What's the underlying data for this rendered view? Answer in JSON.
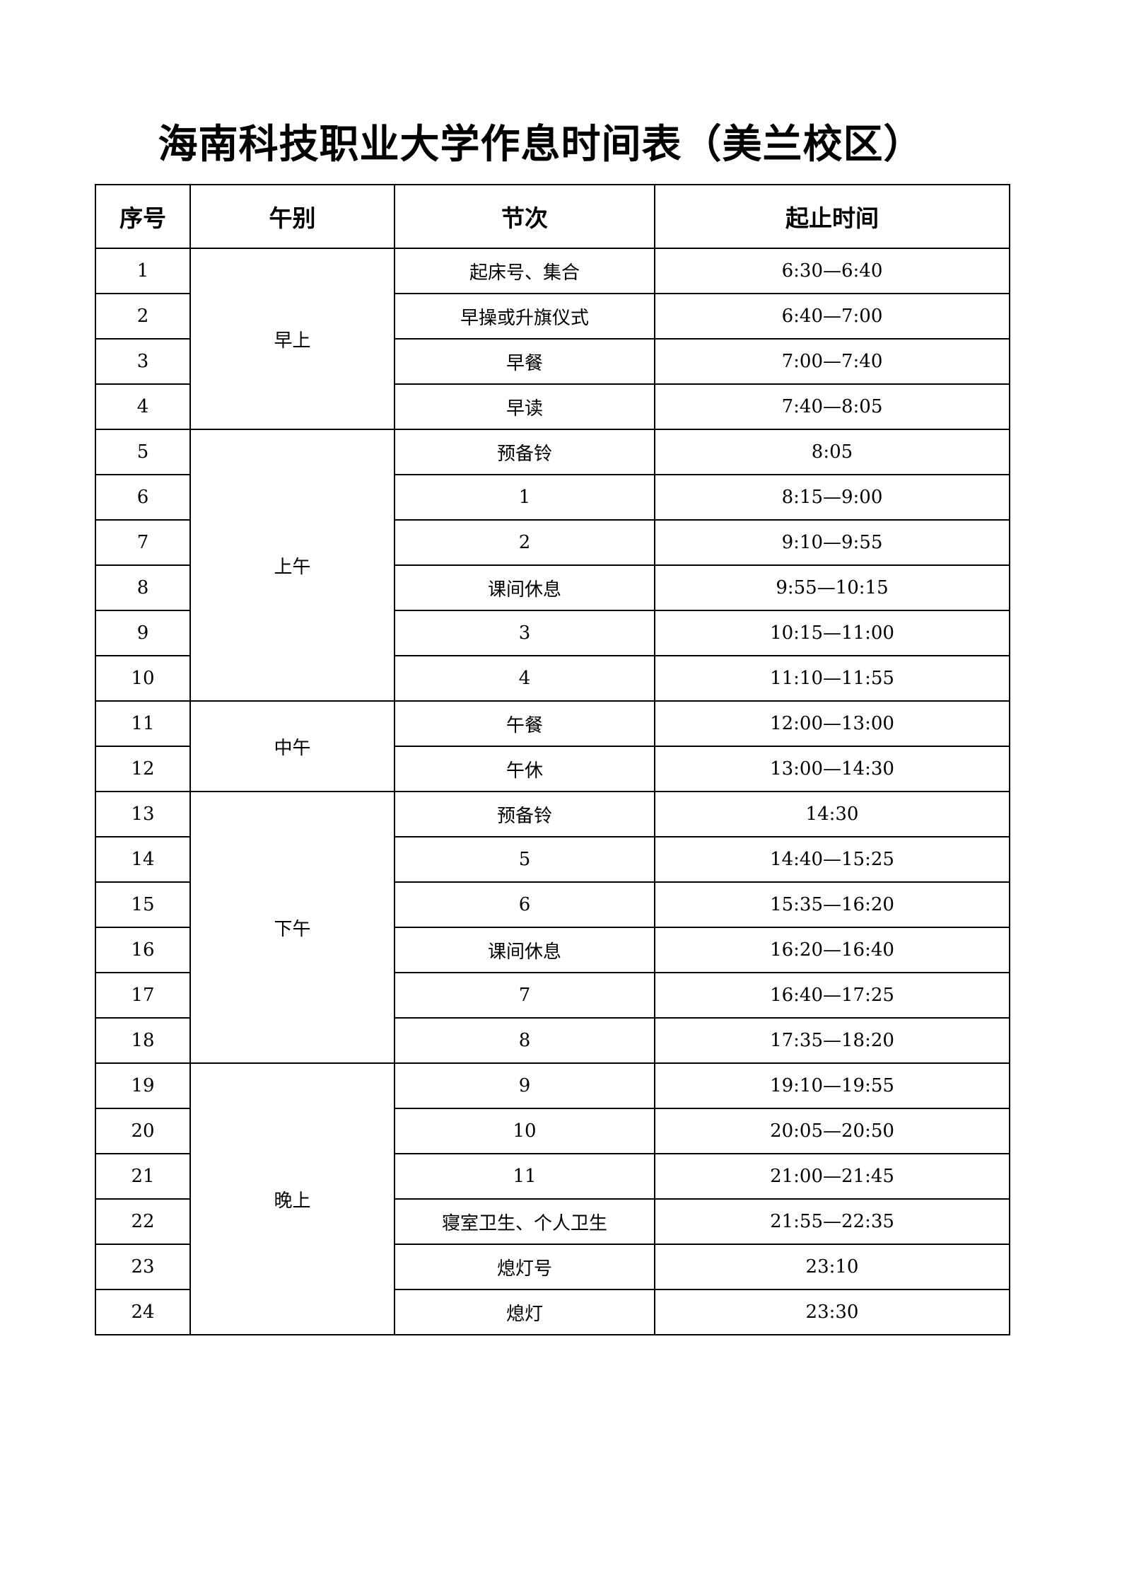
{
  "title": "海南科技职业大学作息时间表（美兰校区）",
  "headers": [
    "序号",
    "午别",
    "节次",
    "起止时间"
  ],
  "groups": [
    {
      "label": "早上",
      "rows": [
        [
          "1",
          "起床号、集合",
          "6:30—6:40"
        ],
        [
          "2",
          "早操或升旗仪式",
          "6:40—7:00"
        ],
        [
          "3",
          "早餐",
          "7:00—7:40"
        ],
        [
          "4",
          "早读",
          "7:40—8:05"
        ]
      ]
    },
    {
      "label": "上午",
      "rows": [
        [
          "5",
          "预备铃",
          "8:05"
        ],
        [
          "6",
          "1",
          "8:15—9:00"
        ],
        [
          "7",
          "2",
          "9:10—9:55"
        ],
        [
          "8",
          "课间休息",
          "9:55—10:15"
        ],
        [
          "9",
          "3",
          "10:15—11:00"
        ],
        [
          "10",
          "4",
          "11:10—11:55"
        ]
      ]
    },
    {
      "label": "中午",
      "rows": [
        [
          "11",
          "午餐",
          "12:00—13:00"
        ],
        [
          "12",
          "午休",
          "13:00—14:30"
        ]
      ]
    },
    {
      "label": "下午",
      "rows": [
        [
          "13",
          "预备铃",
          "14:30"
        ],
        [
          "14",
          "5",
          "14:40—15:25"
        ],
        [
          "15",
          "6",
          "15:35—16:20"
        ],
        [
          "16",
          "课间休息",
          "16:20—16:40"
        ],
        [
          "17",
          "7",
          "16:40—17:25"
        ],
        [
          "18",
          "8",
          "17:35—18:20"
        ]
      ]
    },
    {
      "label": "晚上",
      "rows": [
        [
          "19",
          "9",
          "19:10—19:55"
        ],
        [
          "20",
          "10",
          "20:05—20:50"
        ],
        [
          "21",
          "11",
          "21:00—21:45"
        ],
        [
          "22",
          "寝室卫生、个人卫生",
          "21:55—22:35"
        ],
        [
          "23",
          "熄灯号",
          "23:10"
        ],
        [
          "24",
          "熄灯",
          "23:30"
        ]
      ]
    }
  ]
}
